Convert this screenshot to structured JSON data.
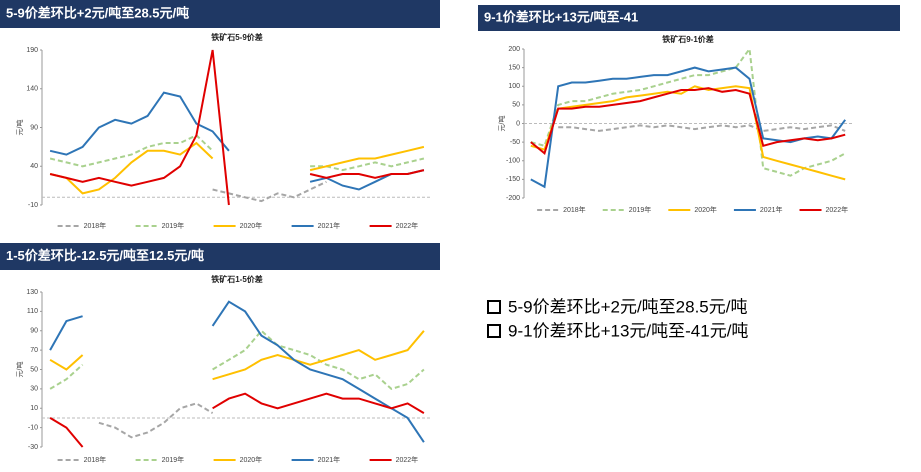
{
  "chart_data": [
    {
      "type": "line",
      "header": "5-9价差环比+2元/吨至28.5元/吨",
      "title": "铁矿石5-9价差",
      "ylabel": "元/吨",
      "categories": [
        null,
        null,
        null,
        null,
        null,
        null,
        null,
        null,
        null,
        null,
        null,
        null,
        null,
        null,
        null,
        null,
        null,
        null,
        null,
        null,
        null,
        null,
        null,
        null
      ],
      "ylim": [
        -10,
        190
      ],
      "yticks": [
        -10,
        40,
        90,
        140,
        190
      ],
      "series": [
        {
          "name": "2018年",
          "color": "#a6a6a6",
          "dash": true,
          "values": [
            null,
            null,
            null,
            null,
            null,
            null,
            null,
            null,
            null,
            null,
            10,
            5,
            0,
            -5,
            5,
            0,
            10,
            20,
            null,
            null,
            null,
            null,
            null,
            null
          ]
        },
        {
          "name": "2019年",
          "color": "#a9d18e",
          "dash": true,
          "values": [
            50,
            45,
            40,
            45,
            50,
            55,
            65,
            70,
            70,
            80,
            60,
            null,
            null,
            null,
            null,
            null,
            40,
            40,
            35,
            40,
            45,
            40,
            45,
            50
          ]
        },
        {
          "name": "2020年",
          "color": "#ffc000",
          "dash": false,
          "values": [
            30,
            25,
            5,
            10,
            25,
            45,
            60,
            60,
            55,
            70,
            50,
            null,
            null,
            null,
            null,
            null,
            35,
            40,
            45,
            50,
            50,
            55,
            60,
            65
          ]
        },
        {
          "name": "2021年",
          "color": "#2e75b6",
          "dash": false,
          "values": [
            60,
            55,
            65,
            90,
            100,
            95,
            105,
            135,
            130,
            95,
            85,
            60,
            null,
            null,
            null,
            null,
            20,
            25,
            15,
            10,
            20,
            30,
            30,
            35
          ]
        },
        {
          "name": "2022年",
          "color": "#e00000",
          "dash": false,
          "values": [
            30,
            25,
            20,
            25,
            20,
            15,
            20,
            25,
            40,
            80,
            190,
            -10,
            null,
            null,
            null,
            null,
            30,
            25,
            30,
            30,
            25,
            30,
            30,
            35
          ]
        }
      ]
    },
    {
      "type": "line",
      "header": "9-1价差环比+13元/吨至-41",
      "title": "铁矿石9-1价差",
      "ylabel": "元/吨",
      "categories": [
        null,
        null,
        null,
        null,
        null,
        null,
        null,
        null,
        null,
        null,
        null,
        null,
        null,
        null,
        null,
        null,
        null,
        null,
        null,
        null,
        null,
        null,
        null,
        null
      ],
      "ylim": [
        -200,
        200
      ],
      "yticks": [
        -200,
        -150,
        -100,
        -50,
        0,
        50,
        100,
        150,
        200
      ],
      "series": [
        {
          "name": "2018年",
          "color": "#a6a6a6",
          "dash": true,
          "values": [
            null,
            null,
            -10,
            -10,
            -15,
            -20,
            -15,
            -10,
            -5,
            -10,
            -5,
            -10,
            -15,
            -10,
            -5,
            -10,
            -5,
            -20,
            -15,
            -10,
            -15,
            -10,
            -5,
            -20
          ]
        },
        {
          "name": "2019年",
          "color": "#a9d18e",
          "dash": true,
          "values": [
            -50,
            -60,
            50,
            60,
            60,
            70,
            80,
            85,
            90,
            100,
            110,
            120,
            130,
            130,
            140,
            150,
            200,
            -120,
            -130,
            -140,
            -120,
            -110,
            -100,
            -80
          ]
        },
        {
          "name": "2020年",
          "color": "#ffc000",
          "dash": false,
          "values": [
            -60,
            -70,
            40,
            45,
            50,
            55,
            60,
            70,
            75,
            80,
            85,
            80,
            100,
            90,
            95,
            100,
            95,
            -90,
            -100,
            -110,
            -120,
            -130,
            -140,
            -150
          ]
        },
        {
          "name": "2021年",
          "color": "#2e75b6",
          "dash": false,
          "values": [
            -150,
            -170,
            100,
            110,
            110,
            115,
            120,
            120,
            125,
            130,
            130,
            140,
            150,
            140,
            145,
            150,
            120,
            -40,
            -45,
            -50,
            -40,
            -35,
            -40,
            10
          ]
        },
        {
          "name": "2022年",
          "color": "#e00000",
          "dash": false,
          "values": [
            -50,
            -80,
            40,
            40,
            45,
            45,
            50,
            55,
            60,
            70,
            80,
            90,
            90,
            95,
            85,
            90,
            80,
            -60,
            -50,
            -45,
            -40,
            -45,
            -40,
            -30
          ]
        }
      ]
    },
    {
      "type": "line",
      "header": "1-5价差环比-12.5元/吨至12.5元/吨",
      "title": "铁矿石1-5价差",
      "ylabel": "元/吨",
      "categories": [
        null,
        null,
        null,
        null,
        null,
        null,
        null,
        null,
        null,
        null,
        null,
        null,
        null,
        null,
        null,
        null,
        null,
        null,
        null,
        null,
        null,
        null,
        null,
        null
      ],
      "ylim": [
        -30,
        130
      ],
      "yticks": [
        -30,
        -10,
        10,
        30,
        50,
        70,
        90,
        110,
        130
      ],
      "series": [
        {
          "name": "2018年",
          "color": "#a6a6a6",
          "dash": true,
          "values": [
            null,
            null,
            null,
            -5,
            -10,
            -20,
            -15,
            -5,
            10,
            15,
            5,
            null,
            null,
            null,
            null,
            null,
            null,
            null,
            null,
            null,
            null,
            null,
            null,
            null
          ]
        },
        {
          "name": "2019年",
          "color": "#a9d18e",
          "dash": true,
          "values": [
            30,
            40,
            55,
            null,
            null,
            null,
            null,
            null,
            null,
            null,
            50,
            60,
            70,
            90,
            75,
            70,
            65,
            55,
            50,
            40,
            45,
            30,
            35,
            50
          ]
        },
        {
          "name": "2020年",
          "color": "#ffc000",
          "dash": false,
          "values": [
            60,
            50,
            65,
            null,
            null,
            null,
            null,
            null,
            null,
            null,
            40,
            45,
            50,
            60,
            65,
            60,
            55,
            60,
            65,
            70,
            60,
            65,
            70,
            90
          ]
        },
        {
          "name": "2021年",
          "color": "#2e75b6",
          "dash": false,
          "values": [
            70,
            100,
            105,
            null,
            null,
            null,
            null,
            null,
            null,
            null,
            95,
            120,
            110,
            85,
            75,
            60,
            50,
            45,
            40,
            30,
            20,
            10,
            0,
            -25
          ]
        },
        {
          "name": "2022年",
          "color": "#e00000",
          "dash": false,
          "values": [
            0,
            -10,
            -30,
            null,
            null,
            null,
            null,
            null,
            null,
            null,
            10,
            20,
            25,
            15,
            10,
            15,
            20,
            25,
            20,
            20,
            15,
            10,
            15,
            5
          ]
        }
      ]
    }
  ],
  "notes": [
    "5-9价差环比+2元/吨至28.5元/吨",
    "9-1价差环比+13元/吨至-41元/吨"
  ]
}
